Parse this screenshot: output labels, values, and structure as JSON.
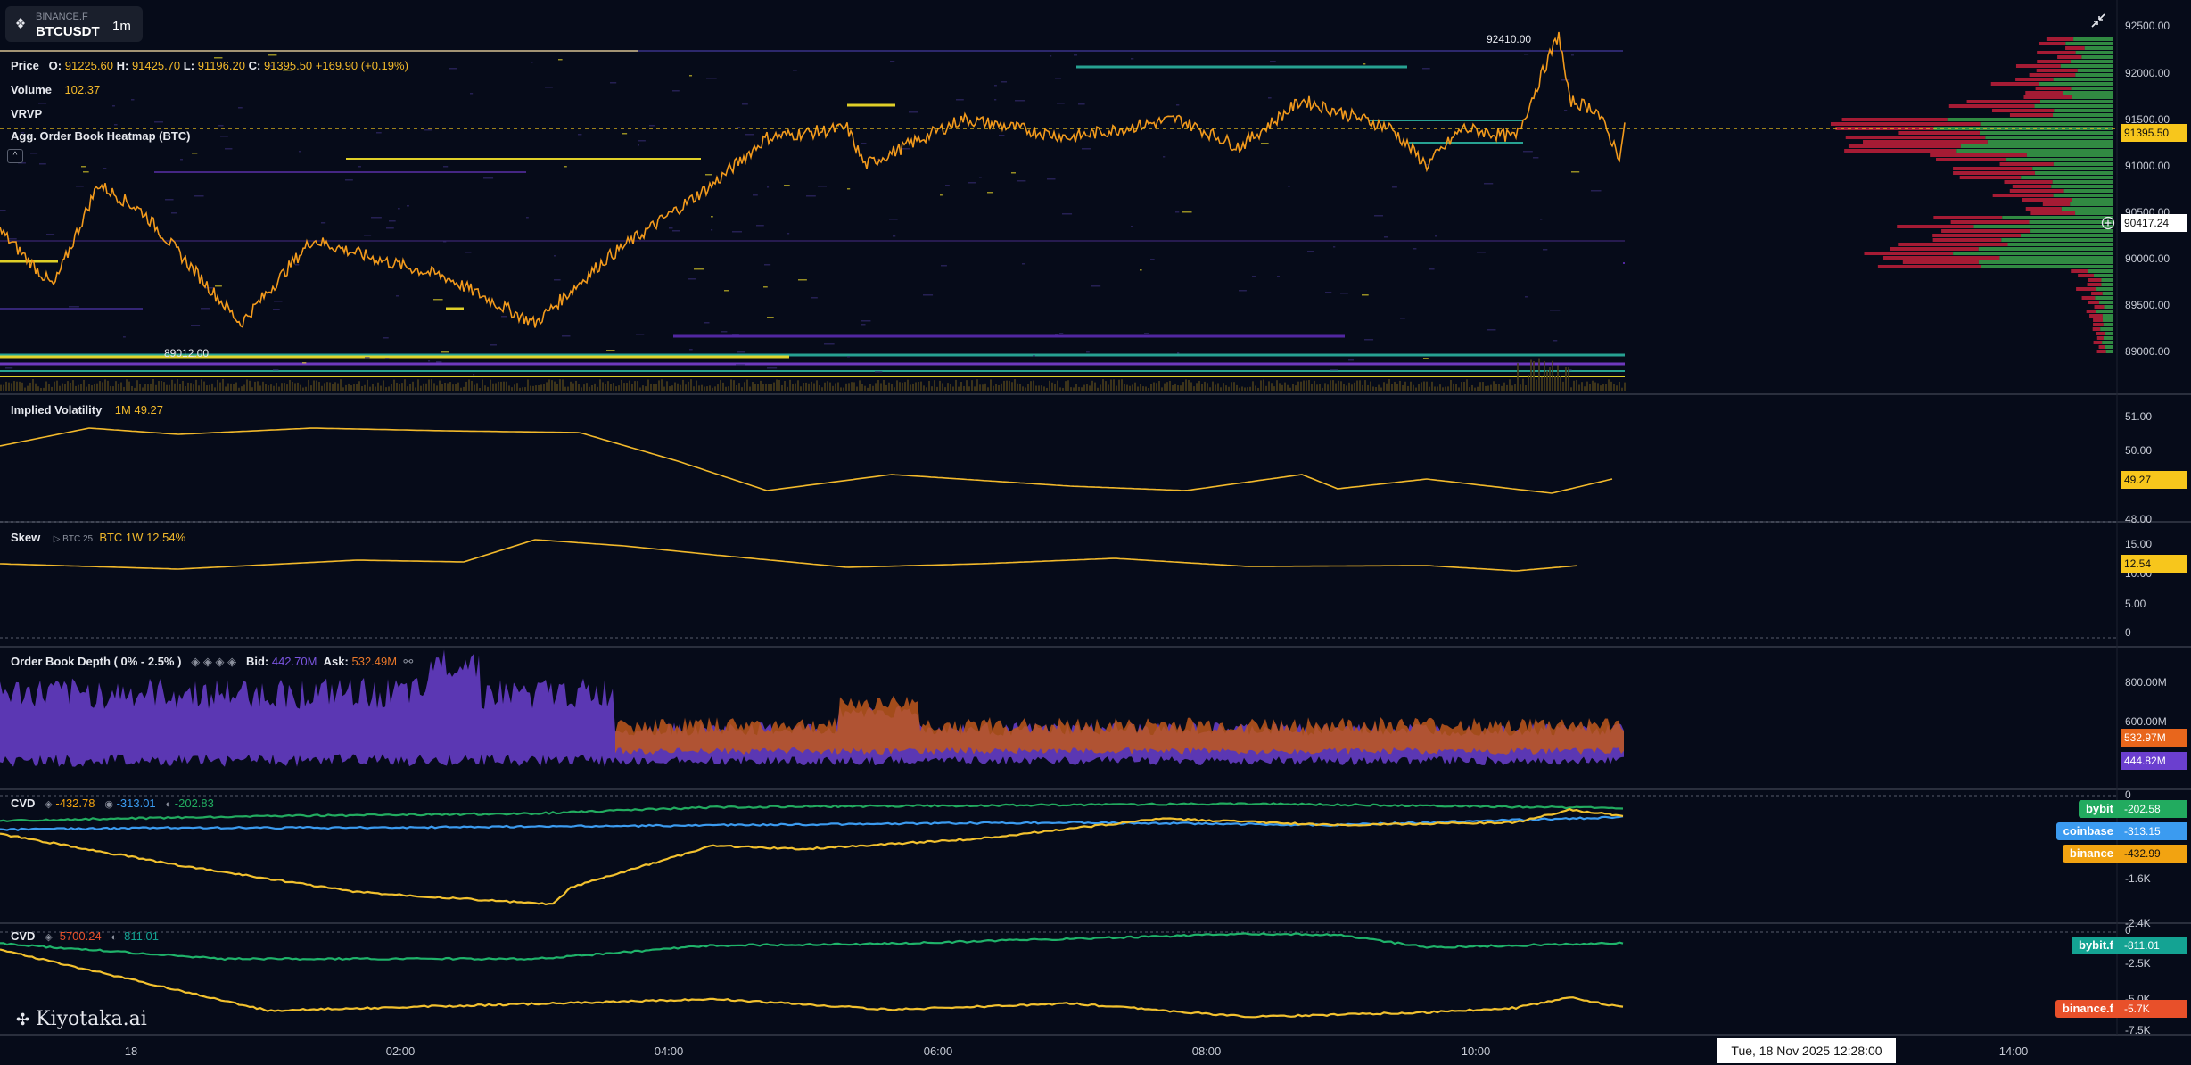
{
  "symbol": {
    "exchange": "BINANCE.F",
    "name": "BTCUSDT",
    "timeframe": "1m"
  },
  "price_legend": {
    "label": "Price",
    "open_key": "O:",
    "open": "91225.60",
    "high_key": "H:",
    "high": "91425.70",
    "low_key": "L:",
    "low": "91196.20",
    "close_key": "C:",
    "close": "91395.50",
    "change": "+169.90",
    "change_pct": "(+0.19%)"
  },
  "volume_legend": {
    "label": "Volume",
    "value": "102.37"
  },
  "vrvp_label": "VRVP",
  "heatmap_label": "Agg. Order Book Heatmap (BTC)",
  "collapse_glyph": "^",
  "price_annotations": {
    "high_label": "92410.00",
    "low_label": "89012.00"
  },
  "price_axis": {
    "ticks": [
      "92500.00",
      "92000.00",
      "91500.00",
      "91000.00",
      "90500.00",
      "90000.00",
      "89500.00",
      "89000.00"
    ],
    "last_price_tag": "91395.50",
    "cursor_price_tag": "90417.24"
  },
  "iv_pane": {
    "title": "Implied Volatility",
    "series_label": "1M",
    "series_value": "49.27",
    "ticks": [
      "51.00",
      "50.00",
      "48.00"
    ],
    "tag": "49.27"
  },
  "skew_pane": {
    "title": "Skew",
    "source": "BTC 25",
    "series_label": "BTC 1W",
    "series_value": "12.54%",
    "ticks": [
      "15.00",
      "10.00",
      "5.00",
      "0"
    ],
    "tag": "12.54"
  },
  "depth_pane": {
    "title": "Order Book Depth ( 0% - 2.5% )",
    "bid_label": "Bid:",
    "bid_value": "442.70M",
    "ask_label": "Ask:",
    "ask_value": "532.49M",
    "ticks": [
      "800.00M",
      "600.00M",
      "0"
    ],
    "ask_tag": "532.97M",
    "bid_tag": "444.82M"
  },
  "cvd1_pane": {
    "title": "CVD",
    "legend": [
      "-432.78",
      "-313.01",
      "-202.83"
    ],
    "ticks": [
      "-1.6K",
      "-2.4K"
    ],
    "tags": [
      {
        "exchange": "bybit",
        "value": "-202.58",
        "color": "#22ab5f"
      },
      {
        "exchange": "coinbase",
        "value": "-313.15",
        "color": "#3b9bf0"
      },
      {
        "exchange": "binance",
        "value": "-432.99",
        "color": "#f2a311"
      }
    ]
  },
  "cvd2_pane": {
    "title": "CVD",
    "legend": [
      "-5700.24",
      "-811.01"
    ],
    "ticks": [
      "0",
      "-2.5K",
      "-5.0K",
      "-7.5K"
    ],
    "tags": [
      {
        "exchange": "bybit.f",
        "value": "-811.01",
        "color": "#14a393"
      },
      {
        "exchange": "binance.f",
        "value": "-5.7K",
        "color": "#e8502a"
      }
    ]
  },
  "time_axis": {
    "labels": [
      "18",
      "02:00",
      "04:00",
      "06:00",
      "08:00",
      "10:00",
      "14:00"
    ],
    "crosshair_label": "Tue, 18 Nov 2025 12:28:00"
  },
  "watermark": "Kiyotaka.ai",
  "icons": [
    "binance-icon",
    "collapse-icon",
    "fullscreen-exit-icon",
    "crosshair-target-icon",
    "exchange-logo-icons",
    "link-icon"
  ],
  "colors": {
    "background": "#060b19",
    "price_line": "#f29a1c",
    "heatmap_level": "#f7e52a",
    "vp_bid": "#3aa14a",
    "vp_ask": "#c21f3a",
    "iv_line": "#f2b92b",
    "depth_bid": "#6b3fcf",
    "depth_ask": "#c0581c",
    "cvd_bybit": "#22ab5f",
    "cvd_coinbase": "#3b9bf0",
    "cvd_binance": "#f2c12e"
  }
}
